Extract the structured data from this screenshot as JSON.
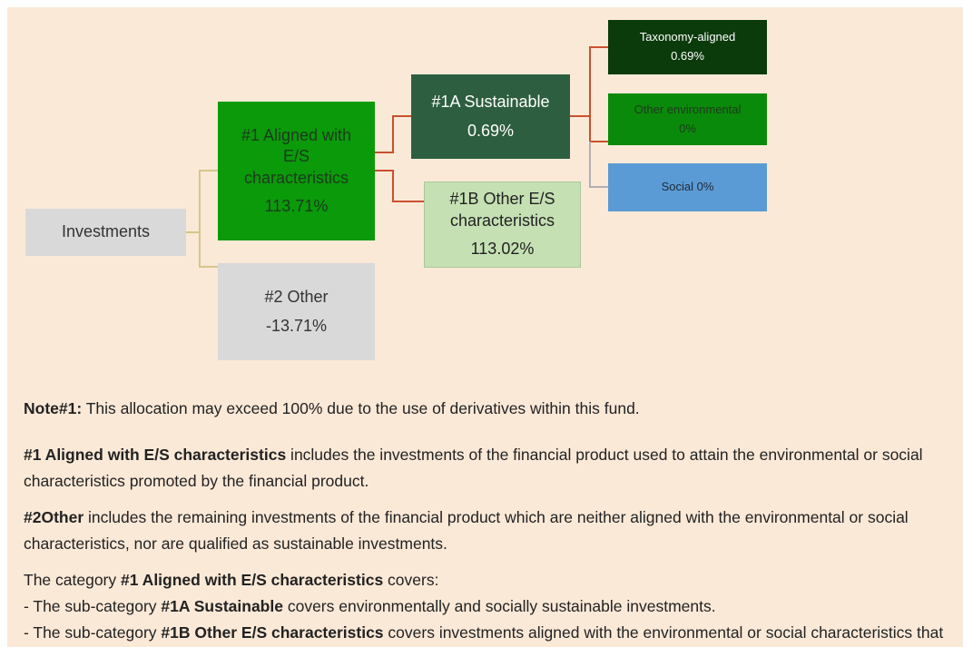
{
  "nodes": [
    {
      "label_lines": [
        "Investments"
      ]
    },
    {
      "label_lines": [
        "#1 Aligned with",
        "E/S",
        "characteristics"
      ],
      "value": "113.71%"
    },
    {
      "label_lines": [
        "#2 Other"
      ],
      "value": "-13.71%"
    },
    {
      "label_lines": [
        "#1A Sustainable"
      ],
      "value": "0.69%"
    },
    {
      "label_lines": [
        "#1B Other E/S",
        "characteristics"
      ],
      "value": "113.02%"
    },
    {
      "label_lines": [
        "Taxonomy-aligned"
      ],
      "value": "0.69%"
    },
    {
      "label_lines": [
        "Other environmental"
      ],
      "value": "0%"
    },
    {
      "label_lines": [
        "Social 0%"
      ]
    }
  ],
  "paragraphs": [
    [
      {
        "text": "Note#1:",
        "bold": true
      },
      {
        "text": " This allocation may exceed 100% due to the use of derivatives within this fund."
      }
    ],
    [
      {
        "text": "#1 Aligned with E/S characteristics",
        "bold": true
      },
      {
        "text": " includes the investments of the financial product used to attain the environmental or social characteristics promoted by the financial product."
      }
    ],
    [
      {
        "text": "#2Other",
        "bold": true
      },
      {
        "text": " includes the remaining investments of the financial product which are neither aligned with the environmental or social characteristics, nor are qualified as sustainable investments."
      }
    ],
    [
      {
        "text": "The category "
      },
      {
        "text": "#1 Aligned with E/S characteristics",
        "bold": true
      },
      {
        "text": " covers:"
      }
    ],
    [
      {
        "text": "- The sub-category "
      },
      {
        "text": "#1A Sustainable",
        "bold": true
      },
      {
        "text": " covers environmentally and socially sustainable investments."
      }
    ],
    [
      {
        "text": "- The sub-category "
      },
      {
        "text": "#1B Other E/S characteristics",
        "bold": true
      },
      {
        "text": " covers investments aligned with the environmental or social characteristics that do not qualify as sustainable investments."
      }
    ]
  ]
}
